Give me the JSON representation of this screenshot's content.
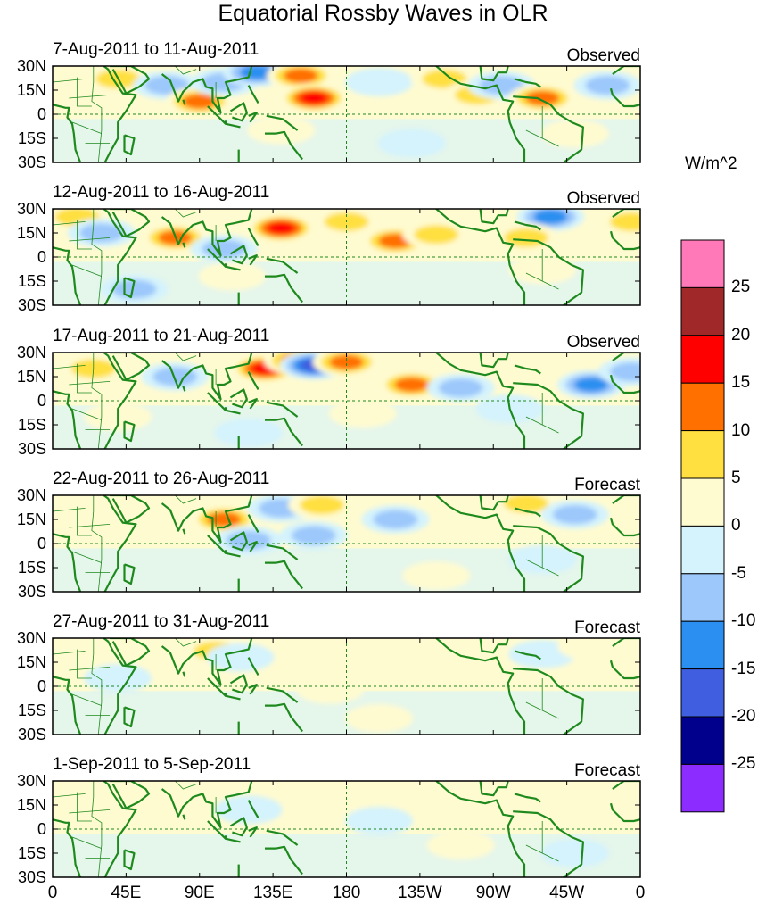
{
  "chart_data": {
    "type": "heatmap",
    "title": "Equatorial Rossby Waves in OLR",
    "units_label": "W/m^2",
    "panels": [
      {
        "date_range": "7-Aug-2011 to 11-Aug-2011",
        "status": "Observed",
        "anomalies": [
          {
            "lon": 40,
            "lat": 22,
            "value": 12
          },
          {
            "lon": 70,
            "lat": 18,
            "value": -12
          },
          {
            "lon": 90,
            "lat": 8,
            "value": 17
          },
          {
            "lon": 105,
            "lat": 20,
            "value": -8
          },
          {
            "lon": 125,
            "lat": 26,
            "value": -15
          },
          {
            "lon": 152,
            "lat": 24,
            "value": 14
          },
          {
            "lon": 160,
            "lat": 10,
            "value": 18
          },
          {
            "lon": 200,
            "lat": 20,
            "value": -6
          },
          {
            "lon": 240,
            "lat": 22,
            "value": 8
          },
          {
            "lon": 260,
            "lat": 12,
            "value": 9
          },
          {
            "lon": 275,
            "lat": 18,
            "value": -12
          },
          {
            "lon": 300,
            "lat": 10,
            "value": 14
          },
          {
            "lon": 340,
            "lat": 18,
            "value": -10
          },
          {
            "lon": 140,
            "lat": -10,
            "value": 5
          },
          {
            "lon": 220,
            "lat": -18,
            "value": -4
          },
          {
            "lon": 320,
            "lat": -12,
            "value": 6
          }
        ]
      },
      {
        "date_range": "12-Aug-2011 to 16-Aug-2011",
        "status": "Observed",
        "anomalies": [
          {
            "lon": 15,
            "lat": 25,
            "value": 12
          },
          {
            "lon": 30,
            "lat": 15,
            "value": -12
          },
          {
            "lon": 75,
            "lat": 12,
            "value": 16
          },
          {
            "lon": 105,
            "lat": 5,
            "value": -10
          },
          {
            "lon": 140,
            "lat": 18,
            "value": 22
          },
          {
            "lon": 180,
            "lat": 22,
            "value": 8
          },
          {
            "lon": 210,
            "lat": 10,
            "value": 14
          },
          {
            "lon": 235,
            "lat": 14,
            "value": 12
          },
          {
            "lon": 305,
            "lat": 25,
            "value": -15
          },
          {
            "lon": 290,
            "lat": 12,
            "value": 12
          },
          {
            "lon": 355,
            "lat": 22,
            "value": 12
          },
          {
            "lon": 50,
            "lat": -20,
            "value": -10
          },
          {
            "lon": 110,
            "lat": -12,
            "value": 6
          },
          {
            "lon": 300,
            "lat": -8,
            "value": 5
          }
        ]
      },
      {
        "date_range": "17-Aug-2011 to 21-Aug-2011",
        "status": "Observed",
        "anomalies": [
          {
            "lon": 25,
            "lat": 20,
            "value": 12
          },
          {
            "lon": 75,
            "lat": 15,
            "value": -10
          },
          {
            "lon": 130,
            "lat": 20,
            "value": 18
          },
          {
            "lon": 150,
            "lat": 25,
            "value": 16
          },
          {
            "lon": 160,
            "lat": 22,
            "value": -22
          },
          {
            "lon": 180,
            "lat": 24,
            "value": 14
          },
          {
            "lon": 220,
            "lat": 10,
            "value": 16
          },
          {
            "lon": 250,
            "lat": 8,
            "value": -8
          },
          {
            "lon": 330,
            "lat": 10,
            "value": -14
          },
          {
            "lon": 355,
            "lat": 18,
            "value": -12
          },
          {
            "lon": 40,
            "lat": -10,
            "value": 6
          },
          {
            "lon": 120,
            "lat": -20,
            "value": -6
          },
          {
            "lon": 190,
            "lat": -8,
            "value": 5
          },
          {
            "lon": 280,
            "lat": -5,
            "value": -5
          }
        ]
      },
      {
        "date_range": "22-Aug-2011 to 26-Aug-2011",
        "status": "Forecast",
        "anomalies": [
          {
            "lon": 80,
            "lat": 18,
            "value": 6
          },
          {
            "lon": 105,
            "lat": 15,
            "value": 14
          },
          {
            "lon": 140,
            "lat": 22,
            "value": -12
          },
          {
            "lon": 165,
            "lat": 24,
            "value": 8
          },
          {
            "lon": 120,
            "lat": 2,
            "value": -10
          },
          {
            "lon": 160,
            "lat": 5,
            "value": -8
          },
          {
            "lon": 210,
            "lat": 15,
            "value": -8
          },
          {
            "lon": 290,
            "lat": 25,
            "value": 8
          },
          {
            "lon": 320,
            "lat": 18,
            "value": -8
          },
          {
            "lon": 40,
            "lat": 8,
            "value": 6
          },
          {
            "lon": 235,
            "lat": -20,
            "value": 6
          },
          {
            "lon": 300,
            "lat": -10,
            "value": -4
          }
        ]
      },
      {
        "date_range": "27-Aug-2011 to 31-Aug-2011",
        "status": "Forecast",
        "anomalies": [
          {
            "lon": 100,
            "lat": 22,
            "value": 8
          },
          {
            "lon": 115,
            "lat": 18,
            "value": -6
          },
          {
            "lon": 40,
            "lat": 5,
            "value": -5
          },
          {
            "lon": 170,
            "lat": -2,
            "value": 4
          },
          {
            "lon": 230,
            "lat": 8,
            "value": 3
          },
          {
            "lon": 300,
            "lat": 20,
            "value": -4
          },
          {
            "lon": 330,
            "lat": 25,
            "value": 4
          },
          {
            "lon": 200,
            "lat": -20,
            "value": 3
          }
        ]
      },
      {
        "date_range": "1-Sep-2011 to 5-Sep-2011",
        "status": "Forecast",
        "anomalies": [
          {
            "lon": 30,
            "lat": 20,
            "value": 3
          },
          {
            "lon": 120,
            "lat": 12,
            "value": -4
          },
          {
            "lon": 170,
            "lat": 18,
            "value": 3
          },
          {
            "lon": 200,
            "lat": 5,
            "value": -3
          },
          {
            "lon": 250,
            "lat": -10,
            "value": 3
          },
          {
            "lon": 320,
            "lat": -15,
            "value": -3
          }
        ]
      }
    ],
    "lat_ticks": [
      "30N",
      "15N",
      "0",
      "15S",
      "30S"
    ],
    "lat_values": [
      30,
      15,
      0,
      -15,
      -30
    ],
    "lon_ticks": [
      "0",
      "45E",
      "90E",
      "135E",
      "180",
      "135W",
      "90W",
      "45W",
      "0"
    ],
    "lon_values": [
      0,
      45,
      90,
      135,
      180,
      225,
      270,
      315,
      360
    ],
    "colorbar": {
      "levels": [
        -25,
        -20,
        -15,
        -10,
        -5,
        0,
        5,
        10,
        15,
        20,
        25
      ],
      "labels": [
        "25",
        "20",
        "15",
        "10",
        "5",
        "0",
        "-5",
        "-10",
        "-15",
        "-20",
        "-25"
      ],
      "colors": [
        "#8c2cff",
        "#00008c",
        "#3f5fe0",
        "#2a8ff0",
        "#9cc8fb",
        "#d4f3fd",
        "#fffbd0",
        "#ffe040",
        "#ff7000",
        "#ff0000",
        "#a02828",
        "#ff78b8"
      ]
    }
  }
}
